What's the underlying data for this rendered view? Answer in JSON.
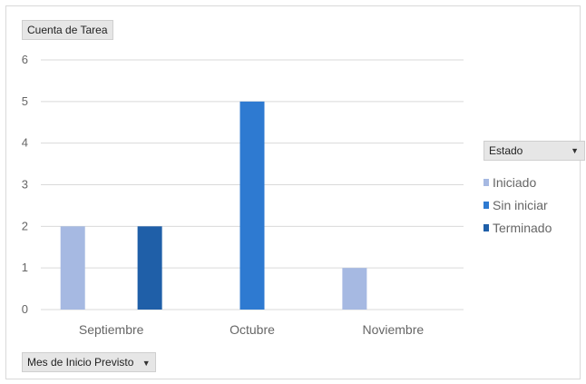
{
  "value_field_label": "Cuenta de Tarea",
  "axis_field_label": "Mes de Inicio Previsto",
  "legend_field_label": "Estado",
  "dropdown_icon": "chevron-down-icon",
  "chart_data": {
    "type": "bar",
    "categories": [
      "Septiembre",
      "Octubre",
      "Noviembre"
    ],
    "series": [
      {
        "name": "Iniciado",
        "values": [
          2,
          0,
          1
        ],
        "color": "#a6b9e2"
      },
      {
        "name": "Sin iniciar",
        "values": [
          0,
          5,
          0
        ],
        "color": "#2e7ad1"
      },
      {
        "name": "Terminado",
        "values": [
          2,
          0,
          0
        ],
        "color": "#1f5fa8"
      }
    ],
    "ylim": [
      0,
      6
    ],
    "yticks": [
      "0",
      "1",
      "2",
      "3",
      "4",
      "5",
      "6"
    ],
    "grid": true,
    "legend_position": "right"
  }
}
